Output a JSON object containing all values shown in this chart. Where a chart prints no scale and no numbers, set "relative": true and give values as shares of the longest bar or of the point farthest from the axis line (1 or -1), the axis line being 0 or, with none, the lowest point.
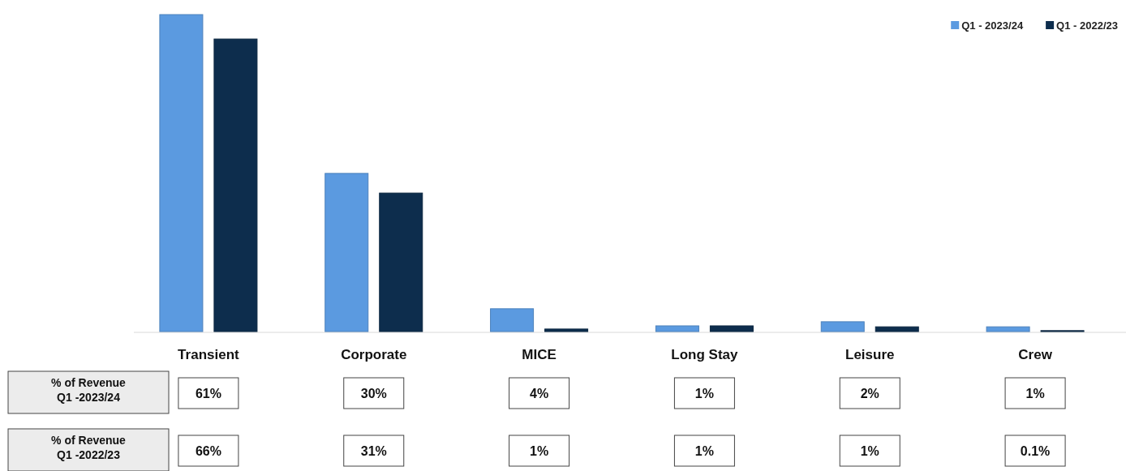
{
  "chart_data": {
    "type": "bar",
    "relative": true,
    "legend": "top right",
    "categories": [
      "Transient",
      "Corporate",
      "MICE",
      "Long Stay",
      "Leisure",
      "Crew"
    ],
    "series": [
      {
        "name": "Q1 - 2023/24",
        "color": "#5b9ae0",
        "values": [
          1,
          0.499,
          0.072,
          0.018,
          0.031,
          0.015
        ]
      },
      {
        "name": "Q1 - 2022/23",
        "color": "#0d2d4d",
        "values": [
          0.923,
          0.437,
          0.008,
          0.018,
          0.015,
          0.003
        ]
      }
    ],
    "annotations": [
      "% of Revenue\nQ1 -2023/24",
      "61%",
      "30%",
      "4%",
      "1%",
      "2%",
      "1%",
      "% of Revenue\nQ1 -2022/23",
      "66%",
      "31%",
      "1%",
      "1%",
      "1%",
      "0.1%"
    ]
  }
}
